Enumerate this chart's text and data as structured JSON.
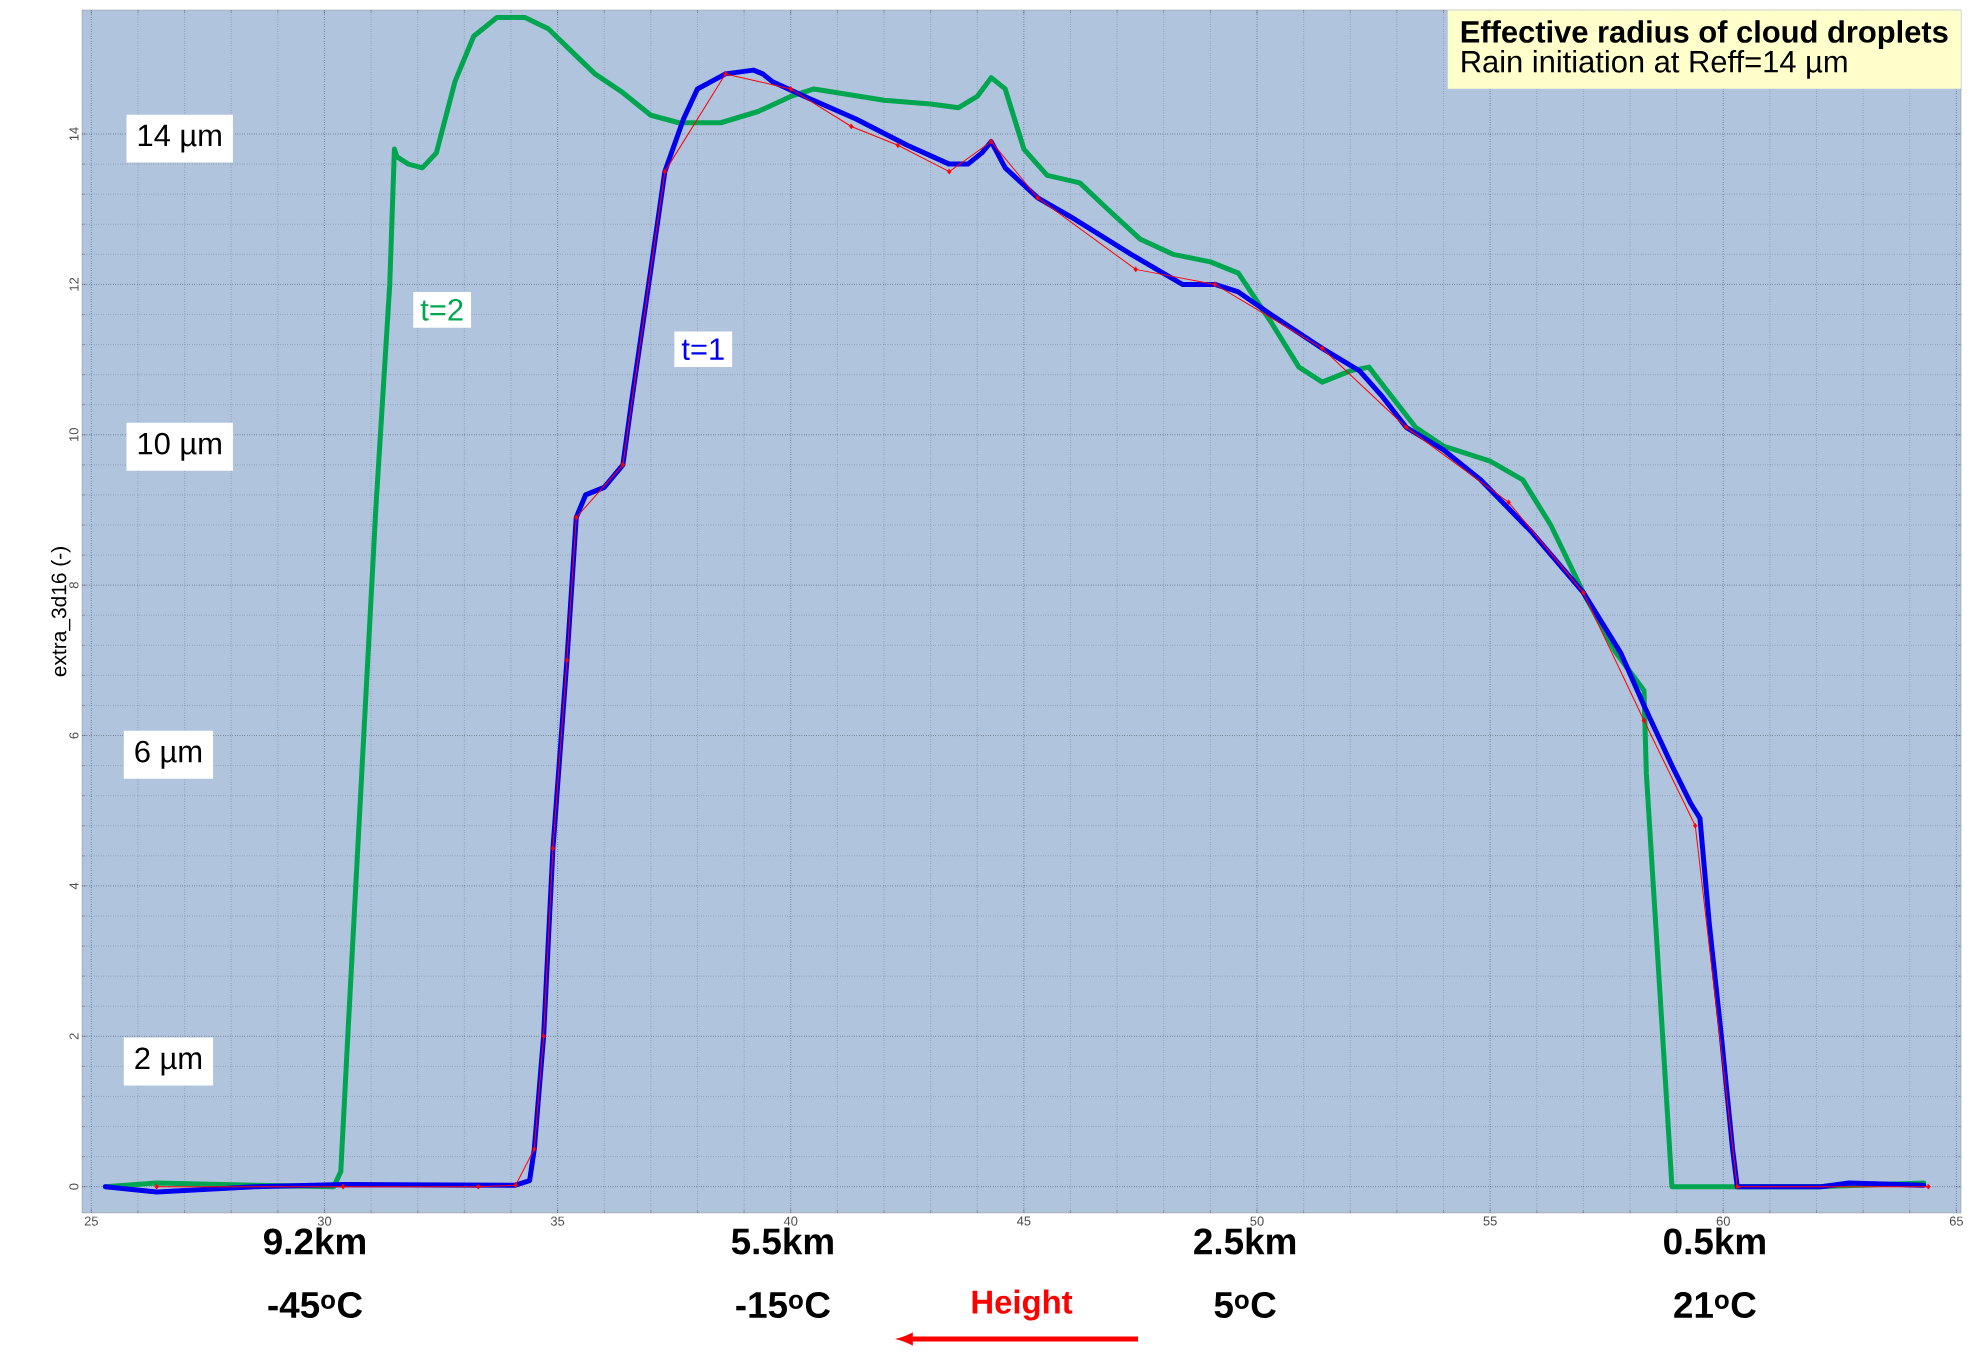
{
  "chart_data": {
    "type": "line",
    "title": "Effective radius of cloud droplets",
    "subtitle": "Rain initiation at Reff=14 µm",
    "ylabel": "extra_3d16 (-)",
    "xlabel": "Height",
    "xlim": [
      24.8,
      65.1
    ],
    "ylim": [
      -0.35,
      15.65
    ],
    "xticks": [
      25,
      30,
      35,
      40,
      45,
      50,
      55,
      60,
      65
    ],
    "yticks": [
      0,
      2,
      4,
      6,
      8,
      10,
      12,
      14
    ],
    "grid": true,
    "series": [
      {
        "name": "t=2",
        "color": "#00a550",
        "x": [
          25.3,
          26.4,
          28.5,
          30.2,
          30.35,
          30.5,
          30.8,
          31.1,
          31.4,
          31.5,
          31.55,
          31.8,
          32.1,
          32.4,
          32.8,
          33.2,
          33.7,
          34.3,
          34.8,
          35.3,
          35.8,
          36.4,
          37.0,
          37.6,
          38.5,
          39.3,
          40.0,
          40.5,
          41.0,
          42.0,
          43.0,
          43.6,
          44.0,
          44.3,
          44.6,
          45.0,
          45.5,
          46.2,
          46.8,
          47.5,
          48.2,
          49.0,
          49.6,
          50.3,
          50.9,
          51.4,
          52.0,
          52.4,
          52.9,
          53.4,
          54.0,
          55.0,
          55.7,
          56.3,
          57.0,
          57.7,
          58.3,
          58.35,
          58.6,
          58.8,
          58.9,
          59.2,
          60.0,
          62.0,
          64.3
        ],
        "values": [
          0,
          0.05,
          0.02,
          0,
          0.2,
          2,
          5.5,
          9,
          12,
          13.8,
          13.7,
          13.6,
          13.55,
          13.75,
          14.7,
          15.3,
          15.55,
          15.55,
          15.4,
          15.1,
          14.8,
          14.55,
          14.25,
          14.15,
          14.15,
          14.3,
          14.5,
          14.6,
          14.55,
          14.45,
          14.4,
          14.35,
          14.5,
          14.75,
          14.6,
          13.8,
          13.45,
          13.35,
          13.0,
          12.6,
          12.4,
          12.3,
          12.15,
          11.5,
          10.9,
          10.7,
          10.85,
          10.9,
          10.5,
          10.1,
          9.85,
          9.65,
          9.4,
          8.8,
          7.9,
          7.1,
          6.6,
          5.5,
          3.0,
          1.0,
          0,
          0,
          0,
          0,
          0.05
        ]
      },
      {
        "name": "t=1",
        "color": "#0000ee",
        "x": [
          25.3,
          26.4,
          28.5,
          30.4,
          34.1,
          34.4,
          34.5,
          34.7,
          34.9,
          35.2,
          35.4,
          35.6,
          36.0,
          36.4,
          36.6,
          37.0,
          37.3,
          37.7,
          38.0,
          38.6,
          39.2,
          39.4,
          39.6,
          40.3,
          41.4,
          42.5,
          43.4,
          43.8,
          44.1,
          44.3,
          44.6,
          45.3,
          46.0,
          47.3,
          48.4,
          49.1,
          49.6,
          50.3,
          51.4,
          52.2,
          52.7,
          53.2,
          54.0,
          54.8,
          55.9,
          57.0,
          57.8,
          58.3,
          58.9,
          59.3,
          59.5,
          59.7,
          59.96,
          60.2,
          60.3,
          62.1,
          62.7,
          64.3
        ],
        "values": [
          0,
          -0.07,
          0,
          0.03,
          0.02,
          0.08,
          0.5,
          2,
          4.5,
          7,
          8.9,
          9.2,
          9.3,
          9.6,
          10.5,
          12.2,
          13.5,
          14.2,
          14.6,
          14.8,
          14.85,
          14.8,
          14.7,
          14.5,
          14.2,
          13.85,
          13.6,
          13.6,
          13.75,
          13.9,
          13.55,
          13.15,
          12.9,
          12.4,
          12.0,
          12.0,
          11.9,
          11.6,
          11.15,
          10.85,
          10.5,
          10.1,
          9.8,
          9.4,
          8.7,
          7.9,
          7.1,
          6.4,
          5.6,
          5.1,
          4.9,
          3.5,
          2.0,
          0.5,
          0,
          0,
          0.05,
          0.02
        ]
      },
      {
        "color": "#ff0000",
        "marker": "diamond",
        "x": [
          26.4,
          30.4,
          33.3,
          34.1,
          34.5,
          34.7,
          34.9,
          35.2,
          35.4,
          36.4,
          37.3,
          38.6,
          40.0,
          41.3,
          42.3,
          43.4,
          44.3,
          45.3,
          47.4,
          49.1,
          51.4,
          53.2,
          55.4,
          57.0,
          58.3,
          59.4,
          60.3,
          64.4
        ],
        "values": [
          0,
          0,
          0,
          0.02,
          0.5,
          2,
          4.5,
          7,
          8.9,
          9.6,
          13.5,
          14.8,
          14.6,
          14.1,
          13.85,
          13.5,
          13.9,
          13.15,
          12.2,
          12.0,
          11.15,
          10.1,
          9.1,
          7.9,
          6.2,
          4.8,
          0,
          0
        ]
      }
    ],
    "annotations": [
      "14 µm",
      "10 µm",
      "6 µm",
      "2 µm",
      "9.2km",
      "-45$^{o}$C",
      "5.5km",
      "-15$^{o}$C",
      "2.5km",
      "5$^{o}$C",
      "0.5km",
      "21$^{o}$C"
    ]
  }
}
